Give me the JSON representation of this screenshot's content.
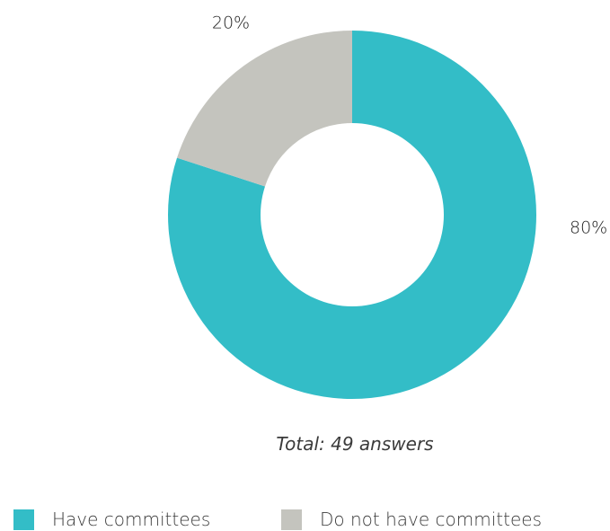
{
  "chart_data": {
    "type": "pie",
    "donut": true,
    "title": "",
    "categories": [
      "Have committees",
      "Do not have committees"
    ],
    "values": [
      80,
      20
    ],
    "value_labels": [
      "80%",
      "20%"
    ],
    "colors": [
      "#33bdc7",
      "#c4c4be"
    ],
    "legend_position": "bottom"
  },
  "total_label": "Total: 49 answers"
}
